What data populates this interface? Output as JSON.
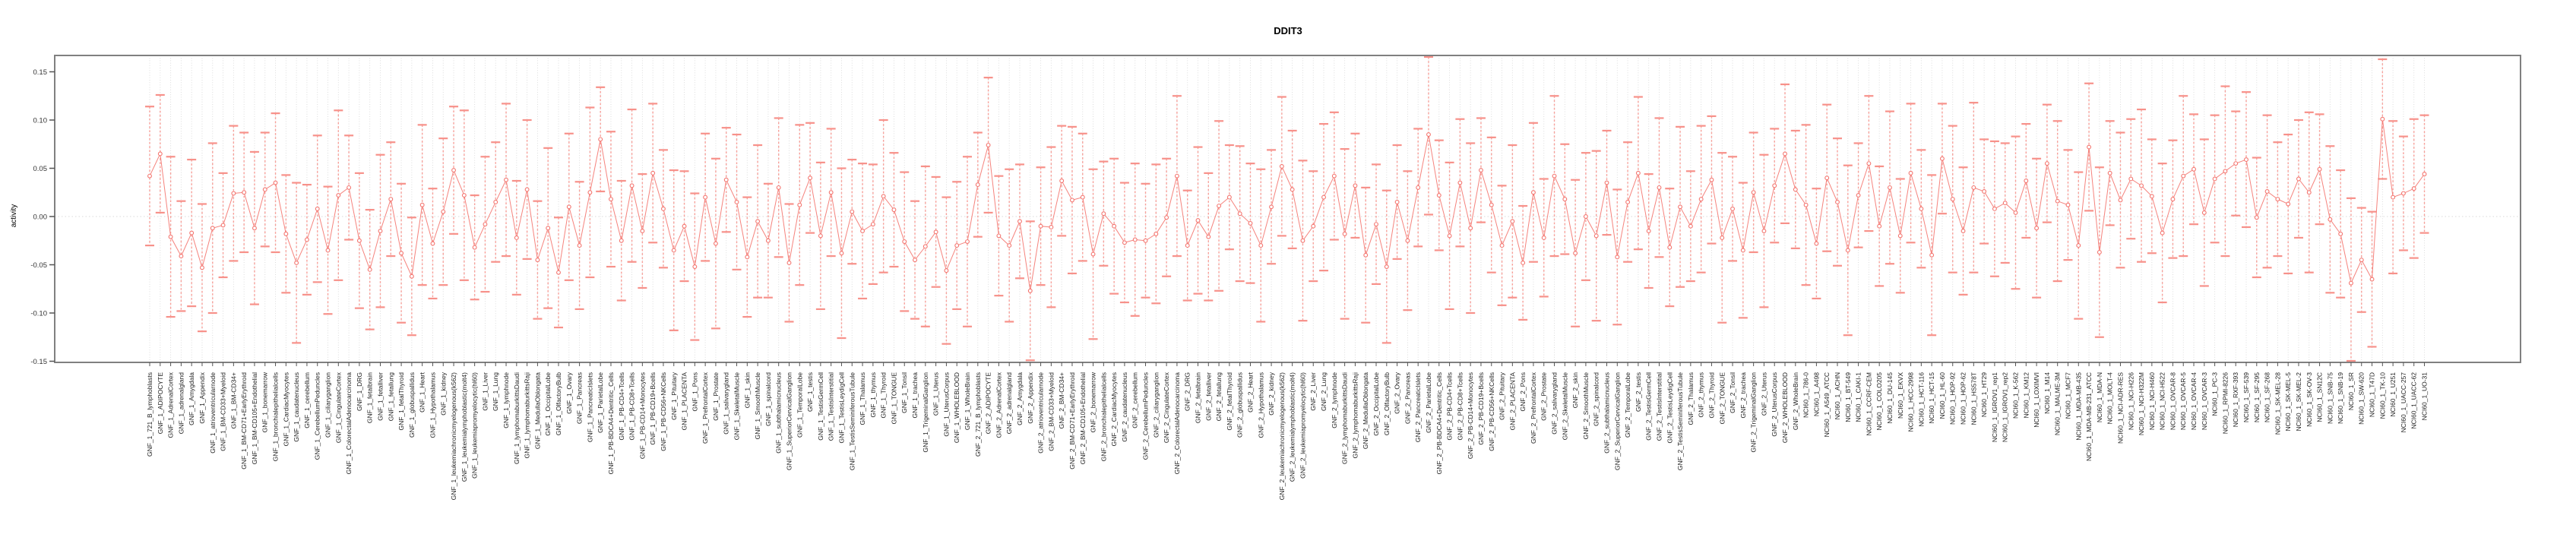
{
  "page": {
    "title": "DDIT3"
  },
  "chart_data": {
    "type": "line",
    "subtype": "errorbar-line-chart",
    "title": "DDIT3",
    "xlabel": "",
    "ylabel": "activity",
    "ylim": [
      -0.16,
      0.166
    ],
    "y_ticks": [
      0.15,
      0.1,
      0.05,
      0.0,
      -0.05,
      -0.1,
      -0.15
    ],
    "y_tick_labels": [
      "0.15",
      "0.10",
      "0.05",
      "0.00",
      "-0.05",
      "-0.10",
      "-0.15"
    ],
    "grid": {
      "vertical_dotted_per_category": true,
      "horizontal_dotted_zero_line": true
    },
    "legend": "none",
    "marker": "open-circle",
    "colors": {
      "series": "#f4756f",
      "error_bar": "#f7a09a",
      "error_cap": "#f7918a",
      "frame": "#808080",
      "grid": "#d9d9d9",
      "tick_text": "#333333",
      "label_text": "#222222"
    },
    "categories": [
      "GNF_1_721_B_lymphoblasts",
      "GNF_1_ADIPOCYTE",
      "GNF_1_AdrenalCortex",
      "GNF_1_adrenalgland",
      "GNF_1_Amygdala",
      "GNF_1_Appendix",
      "GNF_1_atrioventricularnode",
      "GNF_1_BM-CD33+Myeloid",
      "GNF_1_BM-CD34+",
      "GNF_1_BM-CD71+EarlyErythroid",
      "GNF_1_BM-CD105+Endothelial",
      "GNF_1_bonemarrow",
      "GNF_1_bronchialepithelialcells",
      "GNF_1_CardiacMyocytes",
      "GNF_1_caudatenucleus",
      "GNF_1_cerebellum",
      "GNF_1_CerebellumPeduncles",
      "GNF_1_ciliaryganglion",
      "GNF_1_CingulateCortex",
      "GNF_1_ColorectalAdenocarcinoma",
      "GNF_1_DRG",
      "GNF_1_fetalbrain",
      "GNF_1_fetalliver",
      "GNF_1_fetallung",
      "GNF_1_fetalThyroid",
      "GNF_1_globuspallidus",
      "GNF_1_Heart",
      "GNF_1_Hypothalamus",
      "GNF_1_kidney",
      "GNF_1_leukemiachronicmyelogenous(k562)",
      "GNF_1_leukemialymphoblastic(molt4)",
      "GNF_1_leukemiapromyelocytic(hl60)",
      "GNF_1_Liver",
      "GNF_1_Lung",
      "GNF_1_lymphnode",
      "GNF_1_lymphomaburkittsDaudi",
      "GNF_1_lymphomaburkittsRaji",
      "GNF_1_MedullaOblongata",
      "GNF_1_OccipitalLobe",
      "GNF_1_OlfactoryBulb",
      "GNF_1_Ovary",
      "GNF_1_Pancreas",
      "GNF_1_PancreaticIslets",
      "GNF_1_ParietalLobe",
      "GNF_1_PB-BDCA4+Dentritic_Cells",
      "GNF_1_PB-CD4+Tcells",
      "GNF_1_PB-CD8+Tcells",
      "GNF_1_PB-CD14+Monocytes",
      "GNF_1_PB-CD19+Bcells",
      "GNF_1_PB-CD56+NKCells",
      "GNF_1_Pituitary",
      "GNF_1_PLACENTA",
      "GNF_1_Pons",
      "GNF_1_PrefrontalCortex",
      "GNF_1_Prostate",
      "GNF_1_salivarygland",
      "GNF_1_SkeletalMuscle",
      "GNF_1_skin",
      "GNF_1_SmoothMuscle",
      "GNF_1_spinalcord",
      "GNF_1_subthalamicnucleus",
      "GNF_1_SuperiorCervicalGanglion",
      "GNF_1_TemporalLobe",
      "GNF_1_testis",
      "GNF_1_TestisGermCell",
      "GNF_1_TestisInterstitial",
      "GNF_1_TestisLeydigCell",
      "GNF_1_TestisSeminiferousTubule",
      "GNF_1_Thalamus",
      "GNF_1_thymus",
      "GNF_1_Thyroid",
      "GNF_1_TONGUE",
      "GNF_1_Tonsil",
      "GNF_1_trachea",
      "GNF_1_TrigeminalGanglion",
      "GNF_1_Uterus",
      "GNF_1_UterusCorpus",
      "GNF_1_WHOLEBLOOD",
      "GNF_1_WholeBrain",
      "GNF_2_721_B_lymphoblasts",
      "GNF_2_ADIPOCYTE",
      "GNF_2_AdrenalCortex",
      "GNF_2_adrenalgland",
      "GNF_2_Amygdala",
      "GNF_2_Appendix",
      "GNF_2_atrioventricularnode",
      "GNF_2_BM-CD33+Myeloid",
      "GNF_2_BM-CD34+",
      "GNF_2_BM-CD71+EarlyErythroid",
      "GNF_2_BM-CD105+Endothelial",
      "GNF_2_bonemarrow",
      "GNF_2_bronchialepithelialcells",
      "GNF_2_CardiacMyocytes",
      "GNF_2_caudatenucleus",
      "GNF_2_cerebellum",
      "GNF_2_CerebellumPeduncles",
      "GNF_2_ciliaryganglion",
      "GNF_2_CingulateCortex",
      "GNF_2_ColorectalAdenocarcinoma",
      "GNF_2_DRG",
      "GNF_2_fetalbrain",
      "GNF_2_fetalliver",
      "GNF_2_fetallung",
      "GNF_2_fetalThyroid",
      "GNF_2_globuspallidus",
      "GNF_2_Heart",
      "GNF_2_Hypothalamus",
      "GNF_2_kidney",
      "GNF_2_leukemiachronicmyelogenous(k562)",
      "GNF_2_leukemialymphoblastic(molt4)",
      "GNF_2_leukemiapromyelocytic(hl60)",
      "GNF_2_Liver",
      "GNF_2_Lung",
      "GNF_2_lymphnode",
      "GNF_2_lymphomaburkittsDaudi",
      "GNF_2_lymphomaburkittsRaji",
      "GNF_2_MedullaOblongata",
      "GNF_2_OccipitalLobe",
      "GNF_2_OlfactoryBulb",
      "GNF_2_Ovary",
      "GNF_2_Pancreas",
      "GNF_2_PancreaticIslets",
      "GNF_2_ParietalLobe",
      "GNF_2_PB-BDCA4+Dentritic_Cells",
      "GNF_2_PB-CD4+Tcells",
      "GNF_2_PB-CD8+Tcells",
      "GNF_2_PB-CD14+Monocytes",
      "GNF_2_PB-CD19+Bcells",
      "GNF_2_PB-CD56+NKCells",
      "GNF_2_Pituitary",
      "GNF_2_PLACENTA",
      "GNF_2_Pons",
      "GNF_2_PrefrontalCortex",
      "GNF_2_Prostate",
      "GNF_2_salivarygland",
      "GNF_2_SkeletalMuscle",
      "GNF_2_skin",
      "GNF_2_SmoothMuscle",
      "GNF_2_spinalcord",
      "GNF_2_subthalamicnucleus",
      "GNF_2_SuperiorCervicalGanglion",
      "GNF_2_TemporalLobe",
      "GNF_2_testis",
      "GNF_2_TestisGermCell",
      "GNF_2_TestisInterstitial",
      "GNF_2_TestisLeydigCell",
      "GNF_2_TestisSeminiferousTubule",
      "GNF_2_Thalamus",
      "GNF_2_thymus",
      "GNF_2_Thyroid",
      "GNF_2_TONGUE",
      "GNF_2_Tonsil",
      "GNF_2_trachea",
      "GNF_2_TrigeminalGanglion",
      "GNF_2_Uterus",
      "GNF_2_UterusCorpus",
      "GNF_2_WHOLEBLOOD",
      "GNF_2_WholeBrain",
      "NCI60_1_786-0",
      "NCI60_1_A498",
      "NCI60_1_A549_ATCC",
      "NCI60_1_ACHN",
      "NCI60_1_BT-549",
      "NCI60_1_CAKI-1",
      "NCI60_1_CCRF-CEM",
      "NCI60_1_COLO205",
      "NCI60_1_DU-145",
      "NCI60_1_EKVX",
      "NCI60_1_HCC-2998",
      "NCI60_1_HCT-116",
      "NCI60_1_HCT-15",
      "NCI60_1_HL-60",
      "NCI60_1_HOP-92",
      "NCI60_1_HOP-62",
      "NCI60_1_HS578T",
      "NCI60_1_HT29",
      "NCI60_1_IGROV1_rep1",
      "NCI60_1_IGROV1_rep2",
      "NCI60_1_K-562",
      "NCI60_1_KM12",
      "NCI60_1_LOXIMVI",
      "NCI60_1_M14",
      "NCI60_1_MALME-3M",
      "NCI60_1_MCF7",
      "NCI60_1_MDA-MB-435",
      "NCI60_1_MDA-MB-231_ATCC",
      "NCI60_1_MDA-N",
      "NCI60_1_MOLT-4",
      "NCI60_1_NCI-ADR-RES",
      "NCI60_1_NCI-H226",
      "NCI60_1_NCI-H322M",
      "NCI60_1_NCI-H460",
      "NCI60_1_NCI-H522",
      "NCI60_1_OVCAR-8",
      "NCI60_1_OVCAR-5",
      "NCI60_1_OVCAR-4",
      "NCI60_1_OVCAR-3",
      "NCI60_1_PC-3",
      "NCI60_1_RPMI-8226",
      "NCI60_1_RXF-393",
      "NCI60_1_SF-539",
      "NCI60_1_SF-295",
      "NCI60_1_SF-268",
      "NCI60_1_SK-MEL-28",
      "NCI60_1_SK-MEL-5",
      "NCI60_1_SK-MEL-2",
      "NCI60_1_SK-OV-3",
      "NCI60_1_SN12C",
      "NCI60_1_SNB-75",
      "NCI60_1_SNB-19",
      "NCI60_1_SR",
      "NCI60_1_SW-620",
      "NCI60_1_T47D",
      "NCI60_1_TK-10",
      "NCI60_1_U251",
      "NCI60_1_UACC-257",
      "NCI60_1_UACC-62",
      "NCI60_1_UO-31"
    ],
    "values": [
      0.042,
      0.065,
      -0.021,
      -0.041,
      -0.017,
      -0.053,
      -0.012,
      -0.009,
      0.024,
      0.025,
      -0.012,
      0.028,
      0.035,
      -0.018,
      -0.048,
      -0.024,
      0.008,
      -0.035,
      0.022,
      0.03,
      -0.025,
      -0.055,
      -0.015,
      0.018,
      -0.038,
      -0.062,
      0.012,
      -0.028,
      0.005,
      0.048,
      0.022,
      -0.032,
      -0.008,
      0.015,
      0.038,
      -0.022,
      0.028,
      -0.045,
      -0.012,
      -0.058,
      0.01,
      -0.03,
      0.025,
      0.08,
      0.018,
      -0.025,
      0.032,
      -0.015,
      0.045,
      0.008,
      -0.035,
      -0.01,
      -0.052,
      0.02,
      -0.028,
      0.038,
      0.015,
      -0.042,
      -0.005,
      -0.025,
      0.03,
      -0.048,
      0.012,
      0.04,
      -0.02,
      0.025,
      -0.038,
      0.005,
      -0.015,
      -0.008,
      0.021,
      0.007,
      -0.026,
      -0.045,
      -0.031,
      -0.016,
      -0.056,
      -0.03,
      -0.026,
      0.033,
      0.074,
      -0.02,
      -0.03,
      -0.005,
      -0.077,
      -0.01,
      -0.011,
      0.037,
      0.017,
      0.02,
      -0.039,
      0.003,
      -0.01,
      -0.027,
      -0.024,
      -0.025,
      -0.018,
      -0.001,
      0.042,
      -0.03,
      -0.004,
      -0.021,
      0.011,
      0.02,
      0.003,
      -0.007,
      -0.03,
      0.01,
      0.052,
      0.028,
      -0.025,
      -0.01,
      0.02,
      0.042,
      -0.018,
      0.032,
      -0.04,
      -0.008,
      -0.052,
      0.015,
      -0.025,
      0.03,
      0.085,
      0.022,
      -0.02,
      0.035,
      -0.012,
      0.048,
      0.012,
      -0.03,
      -0.005,
      -0.048,
      0.025,
      -0.022,
      0.042,
      0.018,
      -0.038,
      0.0,
      -0.02,
      0.035,
      -0.042,
      0.015,
      0.045,
      -0.015,
      0.03,
      -0.032,
      0.01,
      -0.01,
      0.018,
      0.038,
      -0.022,
      0.008,
      -0.035,
      0.025,
      -0.015,
      0.032,
      0.065,
      0.028,
      0.012,
      -0.028,
      0.04,
      0.015,
      -0.035,
      0.022,
      0.055,
      -0.01,
      0.03,
      -0.02,
      0.045,
      0.008,
      -0.04,
      0.06,
      0.018,
      -0.015,
      0.03,
      0.026,
      0.008,
      0.014,
      0.004,
      0.037,
      -0.012,
      0.055,
      0.016,
      0.012,
      -0.03,
      0.072,
      -0.037,
      0.045,
      0.017,
      0.039,
      0.032,
      0.021,
      -0.017,
      0.018,
      0.042,
      0.049,
      0.004,
      0.039,
      0.047,
      0.055,
      0.059,
      -0.001,
      0.026,
      0.018,
      0.013,
      0.039,
      0.025,
      0.049,
      -0.003,
      -0.018,
      -0.069,
      -0.045,
      -0.065,
      0.101,
      0.02,
      0.024,
      0.029,
      0.044
    ],
    "errors": [
      0.072,
      0.061,
      0.083,
      0.057,
      0.076,
      0.066,
      0.088,
      0.054,
      0.07,
      0.062,
      0.079,
      0.059,
      0.072,
      0.061,
      0.083,
      0.057,
      0.076,
      0.066,
      0.088,
      0.054,
      0.07,
      0.062,
      0.079,
      0.059,
      0.072,
      0.061,
      0.083,
      0.057,
      0.076,
      0.066,
      0.088,
      0.054,
      0.07,
      0.062,
      0.079,
      0.059,
      0.072,
      0.061,
      0.083,
      0.057,
      0.076,
      0.066,
      0.088,
      0.054,
      0.07,
      0.062,
      0.079,
      0.059,
      0.072,
      0.061,
      0.083,
      0.057,
      0.076,
      0.066,
      0.088,
      0.054,
      0.07,
      0.062,
      0.079,
      0.059,
      0.072,
      0.061,
      0.083,
      0.057,
      0.076,
      0.066,
      0.088,
      0.054,
      0.07,
      0.062,
      0.079,
      0.059,
      0.072,
      0.061,
      0.083,
      0.057,
      0.076,
      0.066,
      0.088,
      0.054,
      0.07,
      0.062,
      0.079,
      0.059,
      0.072,
      0.061,
      0.083,
      0.057,
      0.076,
      0.066,
      0.088,
      0.054,
      0.07,
      0.062,
      0.079,
      0.059,
      0.072,
      0.061,
      0.083,
      0.057,
      0.076,
      0.066,
      0.088,
      0.054,
      0.07,
      0.062,
      0.079,
      0.059,
      0.072,
      0.061,
      0.083,
      0.057,
      0.076,
      0.066,
      0.088,
      0.054,
      0.07,
      0.062,
      0.079,
      0.059,
      0.072,
      0.061,
      0.083,
      0.057,
      0.076,
      0.066,
      0.088,
      0.054,
      0.07,
      0.062,
      0.079,
      0.059,
      0.072,
      0.061,
      0.083,
      0.057,
      0.076,
      0.066,
      0.088,
      0.054,
      0.07,
      0.062,
      0.079,
      0.059,
      0.072,
      0.061,
      0.083,
      0.057,
      0.076,
      0.066,
      0.088,
      0.054,
      0.07,
      0.062,
      0.079,
      0.059,
      0.072,
      0.061,
      0.083,
      0.057,
      0.076,
      0.066,
      0.088,
      0.054,
      0.07,
      0.062,
      0.079,
      0.059,
      0.072,
      0.061,
      0.083,
      0.057,
      0.076,
      0.066,
      0.088,
      0.054,
      0.07,
      0.062,
      0.079,
      0.059,
      0.072,
      0.061,
      0.083,
      0.057,
      0.076,
      0.066,
      0.088,
      0.054,
      0.07,
      0.062,
      0.079,
      0.059,
      0.072,
      0.061,
      0.083,
      0.057,
      0.076,
      0.066,
      0.088,
      0.054,
      0.07,
      0.062,
      0.079,
      0.059,
      0.072,
      0.061,
      0.083,
      0.057,
      0.076,
      0.066,
      0.088,
      0.054,
      0.07,
      0.062,
      0.079,
      0.059,
      0.072,
      0.061
    ]
  }
}
